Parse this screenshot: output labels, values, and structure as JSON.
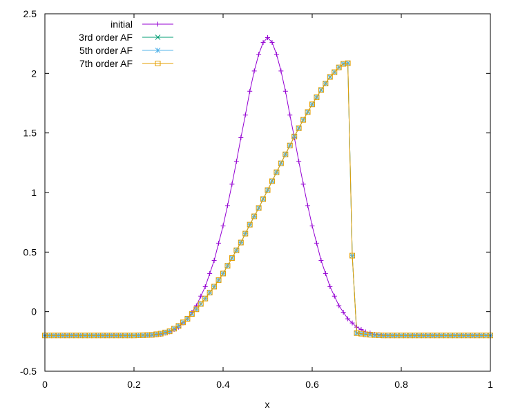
{
  "chart_data": {
    "type": "line",
    "xlabel": "x",
    "ylabel": "",
    "xlim": [
      0,
      1
    ],
    "ylim": [
      -0.5,
      2.5
    ],
    "x_ticks": [
      0,
      0.2,
      0.4,
      0.6,
      0.8,
      1
    ],
    "x_tick_labels": [
      "0",
      "0.2",
      "0.4",
      "0.6",
      "0.8",
      "1"
    ],
    "y_ticks": [
      -0.5,
      0,
      0.5,
      1,
      1.5,
      2,
      2.5
    ],
    "y_tick_labels": [
      "-0.5",
      "0",
      "0.5",
      "1",
      "1.5",
      "2",
      "2.5"
    ],
    "grid": false,
    "legend_position": "top-left",
    "colors": {
      "initial": "#9400d3",
      "af3": "#009e73",
      "af5": "#56b4e9",
      "af7": "#e69f00"
    },
    "series": [
      {
        "name": "initial",
        "marker": "plus",
        "color": "#9400d3",
        "points": [
          [
            0.0,
            -0.2
          ],
          [
            0.2,
            -0.2
          ],
          [
            0.22,
            -0.199
          ],
          [
            0.24,
            -0.197
          ],
          [
            0.26,
            -0.19
          ],
          [
            0.28,
            -0.17
          ],
          [
            0.3,
            -0.13
          ],
          [
            0.32,
            -0.06
          ],
          [
            0.34,
            0.05
          ],
          [
            0.36,
            0.21
          ],
          [
            0.38,
            0.43
          ],
          [
            0.4,
            0.72
          ],
          [
            0.41,
            0.89
          ],
          [
            0.42,
            1.07
          ],
          [
            0.43,
            1.26
          ],
          [
            0.44,
            1.46
          ],
          [
            0.45,
            1.65
          ],
          [
            0.46,
            1.85
          ],
          [
            0.47,
            2.02
          ],
          [
            0.48,
            2.16
          ],
          [
            0.49,
            2.26
          ],
          [
            0.5,
            2.3
          ],
          [
            0.51,
            2.26
          ],
          [
            0.52,
            2.16
          ],
          [
            0.53,
            2.02
          ],
          [
            0.54,
            1.85
          ],
          [
            0.55,
            1.65
          ],
          [
            0.56,
            1.46
          ],
          [
            0.57,
            1.26
          ],
          [
            0.58,
            1.07
          ],
          [
            0.59,
            0.89
          ],
          [
            0.6,
            0.72
          ],
          [
            0.62,
            0.43
          ],
          [
            0.64,
            0.21
          ],
          [
            0.66,
            0.05
          ],
          [
            0.68,
            -0.06
          ],
          [
            0.7,
            -0.13
          ],
          [
            0.72,
            -0.17
          ],
          [
            0.74,
            -0.19
          ],
          [
            0.76,
            -0.197
          ],
          [
            0.78,
            -0.2
          ],
          [
            1.0,
            -0.2
          ]
        ]
      },
      {
        "name": "3rd order AF",
        "marker": "cross",
        "color": "#009e73",
        "points": [
          [
            0.0,
            -0.2
          ],
          [
            0.2,
            -0.2
          ],
          [
            0.22,
            -0.198
          ],
          [
            0.24,
            -0.195
          ],
          [
            0.26,
            -0.185
          ],
          [
            0.28,
            -0.165
          ],
          [
            0.3,
            -0.12
          ],
          [
            0.32,
            -0.06
          ],
          [
            0.34,
            0.02
          ],
          [
            0.36,
            0.11
          ],
          [
            0.38,
            0.21
          ],
          [
            0.4,
            0.32
          ],
          [
            0.42,
            0.45
          ],
          [
            0.44,
            0.58
          ],
          [
            0.46,
            0.73
          ],
          [
            0.48,
            0.87
          ],
          [
            0.5,
            1.02
          ],
          [
            0.52,
            1.17
          ],
          [
            0.54,
            1.32
          ],
          [
            0.56,
            1.47
          ],
          [
            0.58,
            1.61
          ],
          [
            0.6,
            1.74
          ],
          [
            0.62,
            1.86
          ],
          [
            0.64,
            1.97
          ],
          [
            0.66,
            2.05
          ],
          [
            0.67,
            2.08
          ],
          [
            0.68,
            2.085
          ],
          [
            0.69,
            0.47
          ],
          [
            0.7,
            -0.18
          ],
          [
            0.72,
            -0.19
          ],
          [
            0.74,
            -0.197
          ],
          [
            0.76,
            -0.2
          ],
          [
            1.0,
            -0.2
          ]
        ]
      },
      {
        "name": "5th order AF",
        "marker": "star",
        "color": "#56b4e9",
        "points": [
          [
            0.0,
            -0.2
          ],
          [
            0.2,
            -0.2
          ],
          [
            0.22,
            -0.198
          ],
          [
            0.24,
            -0.195
          ],
          [
            0.26,
            -0.185
          ],
          [
            0.28,
            -0.165
          ],
          [
            0.3,
            -0.12
          ],
          [
            0.32,
            -0.06
          ],
          [
            0.34,
            0.02
          ],
          [
            0.36,
            0.11
          ],
          [
            0.38,
            0.21
          ],
          [
            0.4,
            0.32
          ],
          [
            0.42,
            0.45
          ],
          [
            0.44,
            0.58
          ],
          [
            0.46,
            0.73
          ],
          [
            0.48,
            0.87
          ],
          [
            0.5,
            1.02
          ],
          [
            0.52,
            1.17
          ],
          [
            0.54,
            1.32
          ],
          [
            0.56,
            1.47
          ],
          [
            0.58,
            1.61
          ],
          [
            0.6,
            1.74
          ],
          [
            0.62,
            1.86
          ],
          [
            0.64,
            1.97
          ],
          [
            0.66,
            2.05
          ],
          [
            0.67,
            2.08
          ],
          [
            0.68,
            2.085
          ],
          [
            0.69,
            0.47
          ],
          [
            0.7,
            -0.18
          ],
          [
            0.72,
            -0.19
          ],
          [
            0.74,
            -0.197
          ],
          [
            0.76,
            -0.2
          ],
          [
            1.0,
            -0.2
          ]
        ]
      },
      {
        "name": "7th order AF",
        "marker": "square",
        "color": "#e69f00",
        "points": [
          [
            0.0,
            -0.2
          ],
          [
            0.2,
            -0.2
          ],
          [
            0.22,
            -0.198
          ],
          [
            0.24,
            -0.195
          ],
          [
            0.26,
            -0.185
          ],
          [
            0.28,
            -0.165
          ],
          [
            0.3,
            -0.12
          ],
          [
            0.32,
            -0.06
          ],
          [
            0.34,
            0.02
          ],
          [
            0.36,
            0.11
          ],
          [
            0.38,
            0.21
          ],
          [
            0.4,
            0.32
          ],
          [
            0.42,
            0.45
          ],
          [
            0.44,
            0.58
          ],
          [
            0.46,
            0.73
          ],
          [
            0.48,
            0.87
          ],
          [
            0.5,
            1.02
          ],
          [
            0.52,
            1.17
          ],
          [
            0.54,
            1.32
          ],
          [
            0.56,
            1.47
          ],
          [
            0.58,
            1.61
          ],
          [
            0.6,
            1.74
          ],
          [
            0.62,
            1.86
          ],
          [
            0.64,
            1.97
          ],
          [
            0.66,
            2.05
          ],
          [
            0.67,
            2.08
          ],
          [
            0.68,
            2.085
          ],
          [
            0.69,
            0.47
          ],
          [
            0.7,
            -0.18
          ],
          [
            0.72,
            -0.19
          ],
          [
            0.74,
            -0.197
          ],
          [
            0.76,
            -0.2
          ],
          [
            1.0,
            -0.2
          ]
        ]
      }
    ]
  }
}
